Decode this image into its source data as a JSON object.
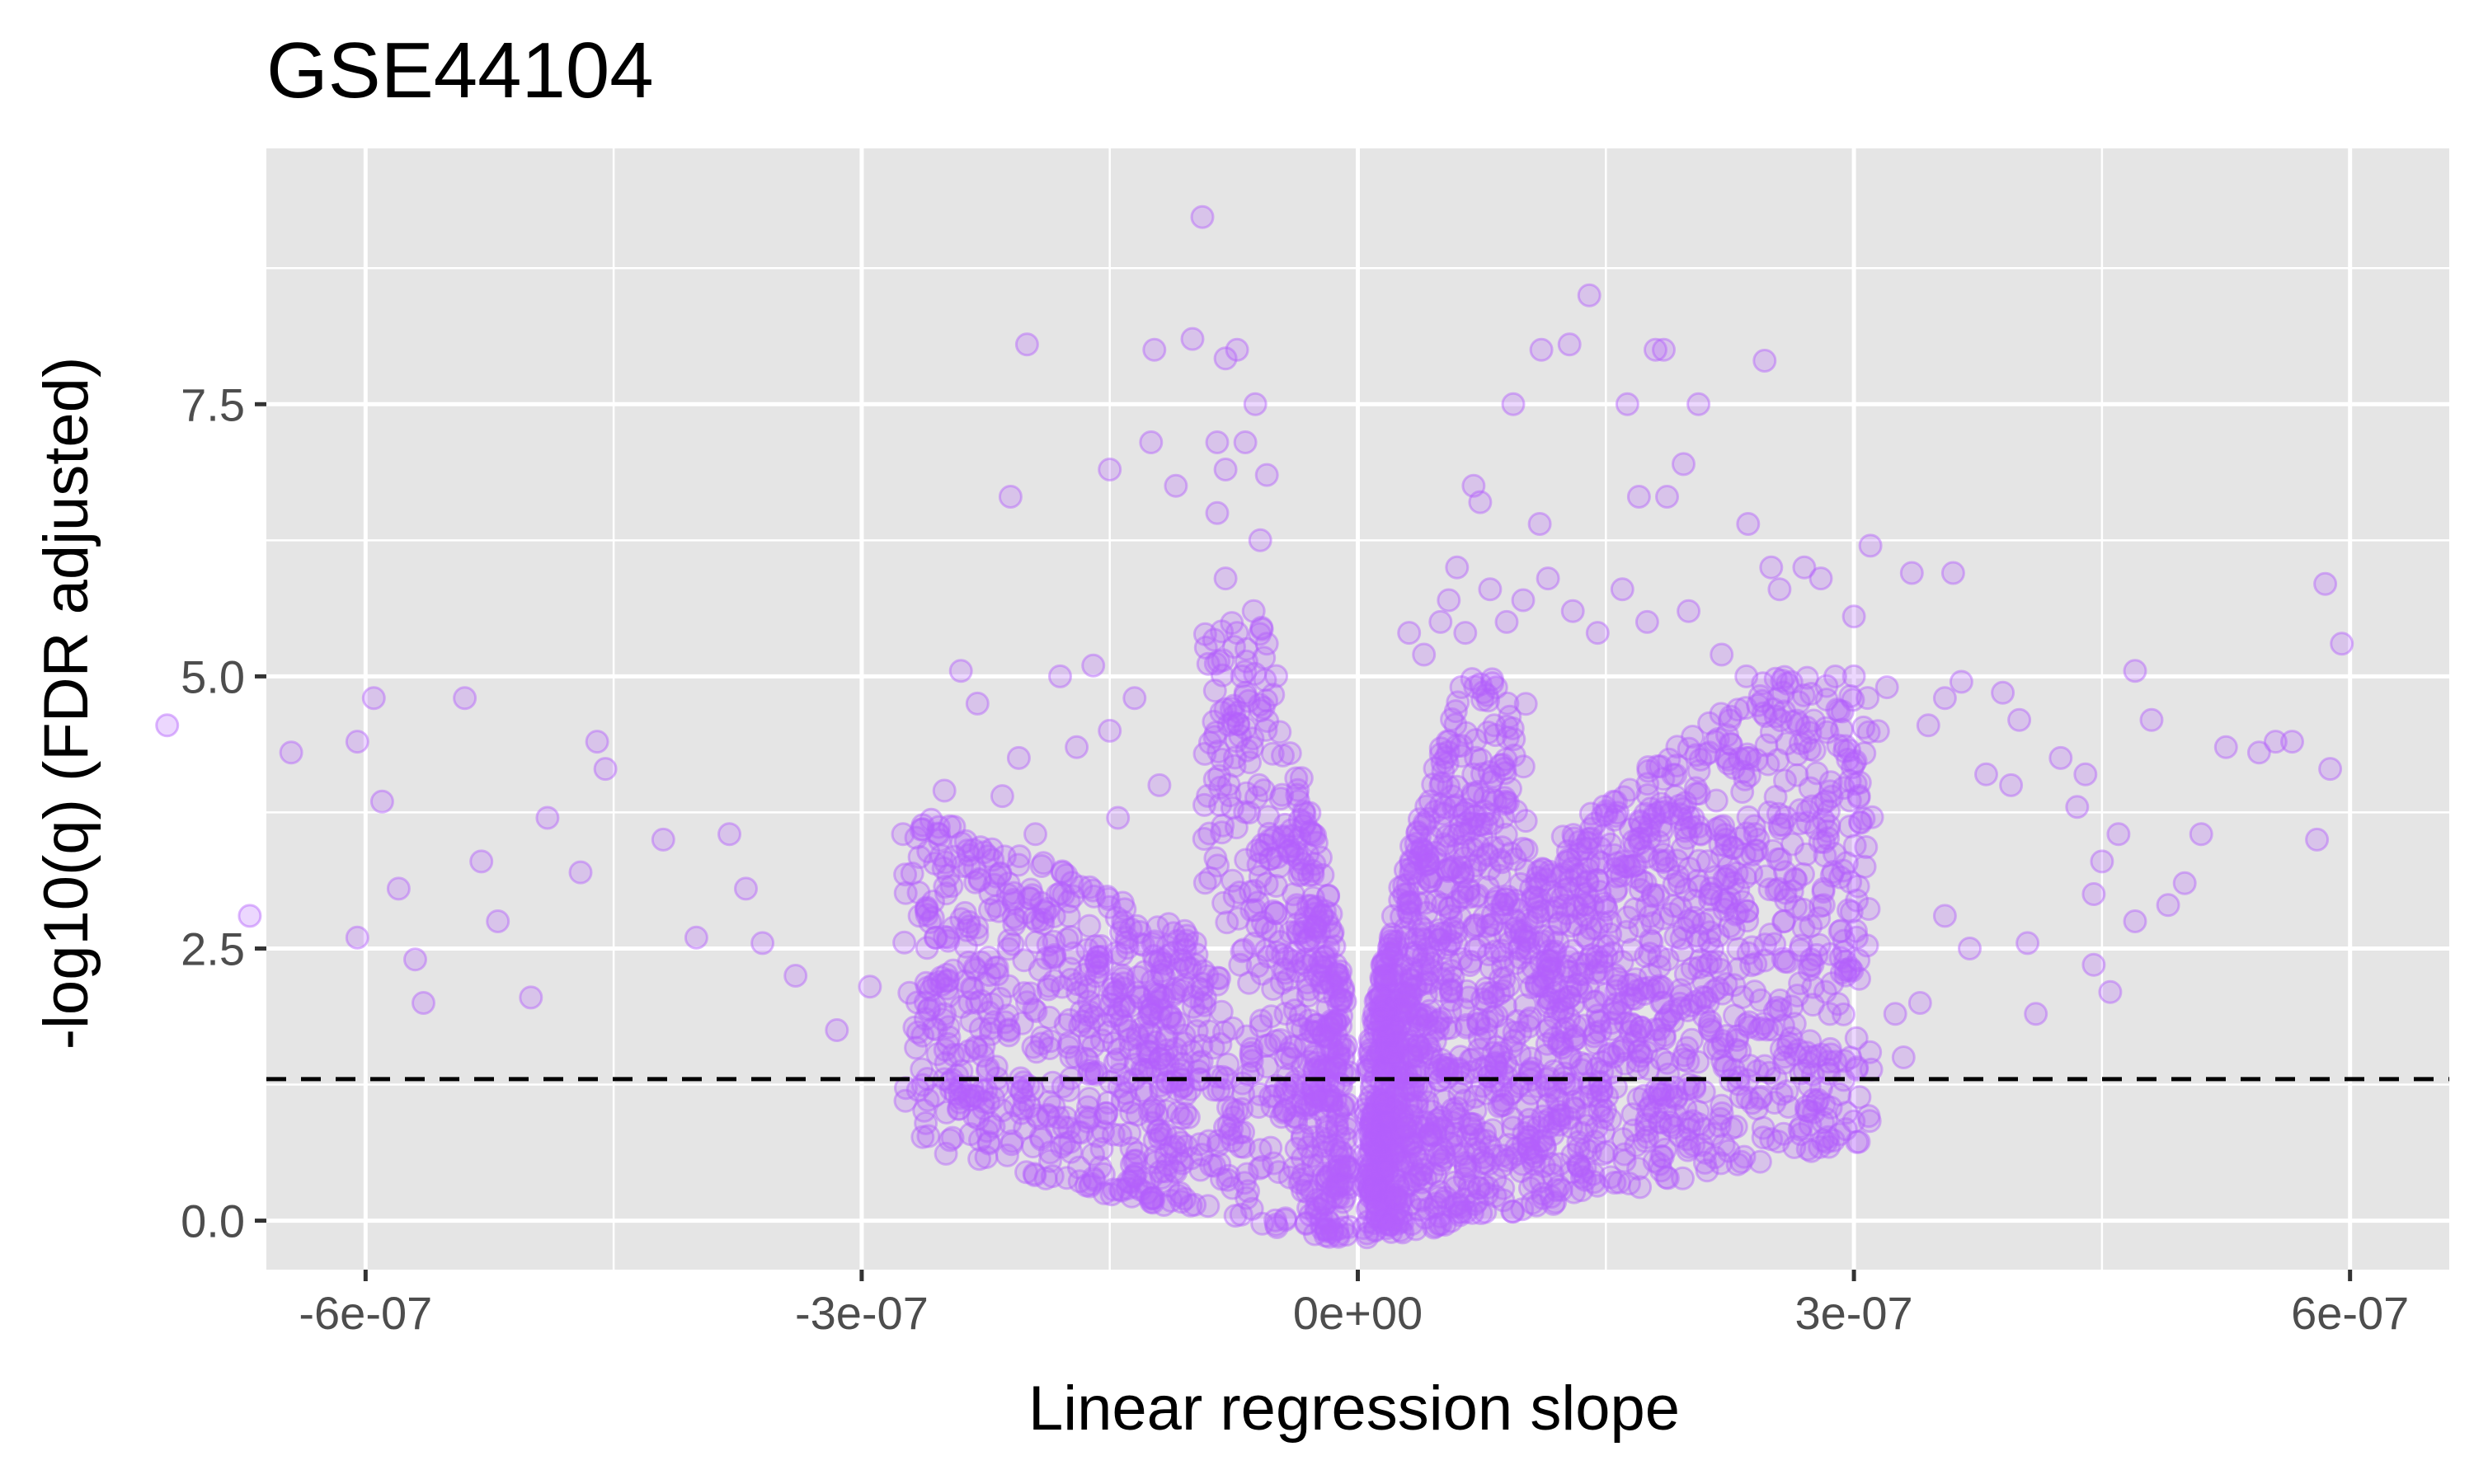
{
  "chart_data": {
    "type": "scatter",
    "title": "GSE44104",
    "xlabel": "Linear regression slope",
    "ylabel": "-log10(q) (FDR adjusted)",
    "xlim": [
      -6.6e-07,
      6.6e-07
    ],
    "ylim": [
      -0.45,
      9.85
    ],
    "x_ticks": [
      -6e-07,
      -3e-07,
      0,
      3e-07,
      6e-07
    ],
    "x_tick_labels": [
      "-6e-07",
      "-3e-07",
      "0e+00",
      "3e-07",
      "6e-07"
    ],
    "x_minor_ticks": [
      -4.5e-07,
      -1.5e-07,
      1.5e-07,
      4.5e-07
    ],
    "y_ticks": [
      0,
      2.5,
      5,
      7.5
    ],
    "y_tick_labels": [
      "0.0",
      "2.5",
      "5.0",
      "7.5"
    ],
    "y_minor_ticks": [
      1.25,
      3.75,
      6.25,
      8.75
    ],
    "grid": true,
    "panel_background": "#e5e5e5",
    "grid_color": "#ffffff",
    "point_color": "#b35ffc",
    "point_alpha": 0.25,
    "point_shape": "open-filled-circle",
    "threshold_line": {
      "y": 1.3,
      "style": "dashed",
      "color": "#000000"
    },
    "series": [
      {
        "points": [
          [
            -9.4e-08,
            9.22
          ],
          [
            -1e-07,
            8.1
          ],
          [
            -2e-07,
            8.05
          ],
          [
            -1.23e-07,
            8.0
          ],
          [
            -7.3e-08,
            8.0
          ],
          [
            1.11e-07,
            8.0
          ],
          [
            1.28e-07,
            8.05
          ],
          [
            1.8e-07,
            8.0
          ],
          [
            1.85e-07,
            8.0
          ],
          [
            2.46e-07,
            7.9
          ],
          [
            1.4e-07,
            8.5
          ],
          [
            -8e-08,
            7.92
          ],
          [
            -6.2e-08,
            7.5
          ],
          [
            9.4e-08,
            7.5
          ],
          [
            1.63e-07,
            7.5
          ],
          [
            2.06e-07,
            7.5
          ],
          [
            -1.25e-07,
            7.15
          ],
          [
            -6.8e-08,
            7.15
          ],
          [
            -8.5e-08,
            7.15
          ],
          [
            -1.5e-07,
            6.9
          ],
          [
            -1.1e-07,
            6.75
          ],
          [
            -2.1e-07,
            6.65
          ],
          [
            -8e-08,
            6.9
          ],
          [
            -5.5e-08,
            6.85
          ],
          [
            7e-08,
            6.75
          ],
          [
            7.4e-08,
            6.6
          ],
          [
            1.7e-07,
            6.65
          ],
          [
            1.87e-07,
            6.65
          ],
          [
            1.97e-07,
            6.95
          ],
          [
            2.36e-07,
            6.4
          ],
          [
            1.1e-07,
            6.4
          ],
          [
            -8.5e-08,
            6.5
          ],
          [
            -5.9e-08,
            6.25
          ],
          [
            -7.2e-07,
            4.55
          ],
          [
            -6.7e-07,
            2.8
          ],
          [
            -6.45e-07,
            4.3
          ],
          [
            -6.05e-07,
            4.4
          ],
          [
            -6.05e-07,
            2.6
          ],
          [
            -5.95e-07,
            4.8
          ],
          [
            -5.9e-07,
            3.85
          ],
          [
            -5.8e-07,
            3.05
          ],
          [
            -5.7e-07,
            2.4
          ],
          [
            -5.65e-07,
            2.0
          ],
          [
            -5.4e-07,
            4.8
          ],
          [
            -5.3e-07,
            3.3
          ],
          [
            -5.2e-07,
            2.75
          ],
          [
            -5e-07,
            2.05
          ],
          [
            -4.9e-07,
            3.7
          ],
          [
            -4.7e-07,
            3.2
          ],
          [
            -4.6e-07,
            4.4
          ],
          [
            -4.55e-07,
            4.15
          ],
          [
            -4.2e-07,
            3.5
          ],
          [
            -4e-07,
            2.6
          ],
          [
            -3.8e-07,
            3.55
          ],
          [
            -3.7e-07,
            3.05
          ],
          [
            -3.6e-07,
            2.55
          ],
          [
            -3.4e-07,
            2.25
          ],
          [
            -3.15e-07,
            1.75
          ],
          [
            -2.95e-07,
            2.15
          ],
          [
            -2.75e-07,
            3.55
          ],
          [
            -2.65e-07,
            2.8
          ],
          [
            -2.55e-07,
            2.6
          ],
          [
            -2.5e-07,
            1.3
          ],
          [
            -2.5e-07,
            3.95
          ],
          [
            -2.4e-07,
            5.05
          ],
          [
            -2.35e-07,
            3.25
          ],
          [
            -2.3e-07,
            4.75
          ],
          [
            -2.15e-07,
            3.9
          ],
          [
            -2.05e-07,
            4.25
          ],
          [
            -1.95e-07,
            3.55
          ],
          [
            -1.8e-07,
            5.0
          ],
          [
            -1.7e-07,
            4.35
          ],
          [
            -1.6e-07,
            5.1
          ],
          [
            -1.5e-07,
            4.5
          ],
          [
            -1.45e-07,
            3.7
          ],
          [
            -1.35e-07,
            4.8
          ],
          [
            -1.2e-07,
            4.0
          ],
          [
            2.7e-07,
            6.0
          ],
          [
            2.5e-07,
            6.0
          ],
          [
            2.55e-07,
            5.8
          ],
          [
            2.8e-07,
            5.9
          ],
          [
            3e-07,
            5.55
          ],
          [
            3.1e-07,
            6.2
          ],
          [
            3.35e-07,
            5.95
          ],
          [
            3.6e-07,
            5.95
          ],
          [
            3e-07,
            5.0
          ],
          [
            3.2e-07,
            4.9
          ],
          [
            3.45e-07,
            4.55
          ],
          [
            3.55e-07,
            4.8
          ],
          [
            3.65e-07,
            4.95
          ],
          [
            3.8e-07,
            4.1
          ],
          [
            3.9e-07,
            4.85
          ],
          [
            3.95e-07,
            4.0
          ],
          [
            4e-07,
            4.6
          ],
          [
            4.25e-07,
            4.25
          ],
          [
            4.35e-07,
            3.8
          ],
          [
            4.4e-07,
            4.1
          ],
          [
            4.45e-07,
            3.0
          ],
          [
            4.5e-07,
            3.3
          ],
          [
            4.6e-07,
            3.55
          ],
          [
            4.7e-07,
            5.05
          ],
          [
            4.8e-07,
            4.6
          ],
          [
            4.9e-07,
            2.9
          ],
          [
            5e-07,
            3.1
          ],
          [
            5.1e-07,
            3.55
          ],
          [
            5.25e-07,
            4.35
          ],
          [
            5.45e-07,
            4.3
          ],
          [
            5.55e-07,
            4.4
          ],
          [
            5.65e-07,
            4.4
          ],
          [
            5.8e-07,
            3.5
          ],
          [
            5.85e-07,
            5.85
          ],
          [
            5.88e-07,
            4.15
          ],
          [
            5.95e-07,
            5.3
          ],
          [
            4.45e-07,
            2.35
          ],
          [
            4.55e-07,
            2.1
          ],
          [
            4.05e-07,
            2.55
          ],
          [
            4.1e-07,
            1.9
          ],
          [
            3.55e-07,
            2.8
          ],
          [
            3.7e-07,
            2.5
          ],
          [
            3.3e-07,
            1.5
          ],
          [
            3.25e-07,
            1.9
          ],
          [
            3.4e-07,
            2.0
          ],
          [
            2.85e-07,
            1.35
          ],
          [
            2.6e-07,
            1.6
          ],
          [
            2.75e-07,
            2.35
          ],
          [
            4.7e-07,
            2.75
          ],
          [
            -7.3e-08,
            5.4
          ],
          [
            -7e-08,
            5.0
          ],
          [
            -5.5e-08,
            5.3
          ],
          [
            -8e-08,
            5.9
          ],
          [
            -6.3e-08,
            5.6
          ],
          [
            5e-08,
            5.5
          ],
          [
            5.5e-08,
            5.7
          ],
          [
            6e-08,
            6.0
          ],
          [
            6.5e-08,
            5.4
          ],
          [
            8e-08,
            5.8
          ],
          [
            9e-08,
            5.5
          ],
          [
            1e-07,
            5.7
          ],
          [
            1.15e-07,
            5.9
          ],
          [
            1.3e-07,
            5.6
          ],
          [
            1.45e-07,
            5.4
          ],
          [
            1.6e-07,
            5.8
          ],
          [
            1.75e-07,
            5.5
          ],
          [
            2e-07,
            5.6
          ],
          [
            2.2e-07,
            5.2
          ],
          [
            2.35e-07,
            5.0
          ],
          [
            3.1e-08,
            5.4
          ],
          [
            4e-08,
            5.2
          ]
        ]
      }
    ]
  }
}
